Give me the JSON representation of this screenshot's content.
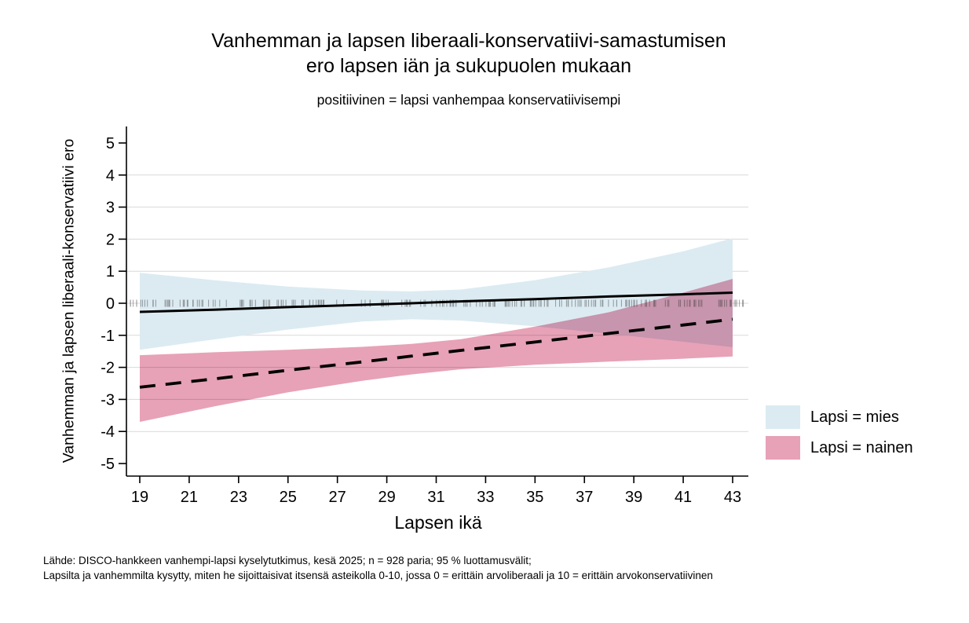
{
  "chart_data": {
    "type": "line",
    "title": "Vanhemman ja lapsen liberaali-konservatiivi-samastumisen ero lapsen iän ja sukupuolen mukaan",
    "title_line1": "Vanhemman ja lapsen liberaali-konservatiivi-samastumisen",
    "title_line2": "ero lapsen iän ja sukupuolen mukaan",
    "subtitle": "positiivinen = lapsi vanhempaa konservatiivisempi",
    "xlabel": "Lapsen ikä",
    "ylabel": "Vanhemman ja lapsen liberaali-konservatiivi ero",
    "xlim": [
      18.5,
      43.65
    ],
    "ylim": [
      -5.4,
      5.5
    ],
    "xticks": [
      19,
      21,
      23,
      25,
      27,
      29,
      31,
      33,
      35,
      37,
      39,
      41,
      43
    ],
    "yticks": [
      5,
      4,
      3,
      2,
      1,
      0,
      -1,
      -2,
      -3,
      -4,
      -5
    ],
    "grid_yticks": [
      4,
      3,
      2,
      1,
      0,
      -1,
      -2,
      -3,
      -4
    ],
    "grid_color": "#d9d9d9",
    "axis_color": "#000000",
    "series": [
      {
        "name": "Lapsi = mies",
        "line_style": "solid",
        "line_color": "#000000",
        "band_color": "#dcebf2",
        "x": [
          19,
          22,
          25,
          28,
          30,
          32,
          35,
          38,
          41,
          43
        ],
        "y": [
          -0.27,
          -0.2,
          -0.12,
          -0.05,
          0.0,
          0.06,
          0.13,
          0.21,
          0.28,
          0.33
        ],
        "ci_upper": [
          0.95,
          0.72,
          0.52,
          0.4,
          0.37,
          0.43,
          0.72,
          1.12,
          1.62,
          2.03
        ],
        "ci_lower": [
          -1.45,
          -1.13,
          -0.82,
          -0.57,
          -0.5,
          -0.54,
          -0.72,
          -0.95,
          -1.2,
          -1.37
        ]
      },
      {
        "name": "Lapsi = nainen",
        "line_style": "dashed",
        "line_color": "#000000",
        "band_color": "#e7a2b7",
        "x": [
          19,
          22,
          25,
          28,
          30,
          32,
          35,
          38,
          41,
          43
        ],
        "y": [
          -2.62,
          -2.36,
          -2.09,
          -1.83,
          -1.65,
          -1.47,
          -1.21,
          -0.94,
          -0.68,
          -0.5
        ],
        "ci_upper": [
          -1.62,
          -1.53,
          -1.45,
          -1.36,
          -1.27,
          -1.12,
          -0.73,
          -0.28,
          0.33,
          0.76
        ],
        "ci_lower": [
          -3.7,
          -3.22,
          -2.78,
          -2.42,
          -2.22,
          -2.06,
          -1.92,
          -1.82,
          -1.73,
          -1.66
        ]
      }
    ],
    "rug": {
      "y": 0,
      "x_min": 18.6,
      "x_max": 43.5,
      "count": 235,
      "seed": 12345,
      "color": "#303030"
    },
    "legend_position": "right"
  },
  "notes": {
    "line1": "Lähde: DISCO-hankkeen vanhempi-lapsi kyselytutkimus, kesä 2025; n = 928 paria; 95 % luottamusvälit;",
    "line2": "Lapsilta ja vanhemmilta kysytty, miten he sijoittaisivat itsensä asteikolla 0-10, jossa 0 = erittäin arvoliberaali ja 10 = erittäin arvokonservatiivinen"
  }
}
